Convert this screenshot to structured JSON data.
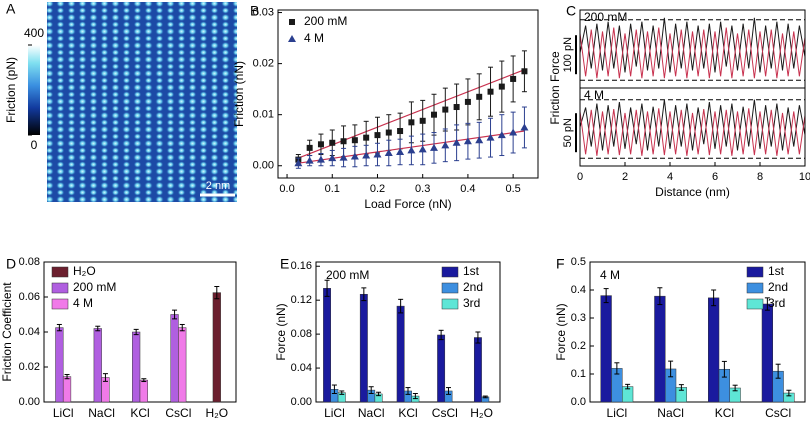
{
  "chart_data": [
    {
      "type": "image",
      "label": "A",
      "colorbar_label": "Friction (pN)",
      "clim": [
        0,
        400
      ],
      "cticks": [
        0,
        400
      ],
      "scale_bar": "2 nm"
    },
    {
      "type": "scatter",
      "label": "B",
      "xlabel": "Load Force (nN)",
      "ylabel": "Friction (nN)",
      "xlim": [
        -0.02,
        0.555
      ],
      "ylim": [
        -0.0024,
        0.0305
      ],
      "xticks": [
        {
          "value": 0,
          "label": "0.0"
        },
        {
          "value": 0.1,
          "label": "0.1"
        },
        {
          "value": 0.2,
          "label": "0.2"
        },
        {
          "value": 0.3,
          "label": "0.3"
        },
        {
          "value": 0.4,
          "label": "0.4"
        },
        {
          "value": 0.5,
          "label": "0.5"
        }
      ],
      "yticks": [
        {
          "value": 0,
          "label": "0.00"
        },
        {
          "value": 0.01,
          "label": "0.01"
        },
        {
          "value": 0.02,
          "label": "0.02"
        },
        {
          "value": 0.03,
          "label": "0.03"
        }
      ],
      "legend": "upper left",
      "x": [
        0.025,
        0.05,
        0.075,
        0.1,
        0.125,
        0.15,
        0.175,
        0.2,
        0.225,
        0.25,
        0.275,
        0.3,
        0.325,
        0.35,
        0.375,
        0.4,
        0.425,
        0.45,
        0.475,
        0.5,
        0.525
      ],
      "series": [
        {
          "name": "200 mM",
          "color": "#1a1a1a",
          "marker": "square",
          "fit_color": "#c8324f",
          "values": [
            0.0012,
            0.0035,
            0.0042,
            0.0045,
            0.0048,
            0.005,
            0.0055,
            0.006,
            0.0065,
            0.0068,
            0.0085,
            0.0088,
            0.01,
            0.011,
            0.0115,
            0.0125,
            0.0135,
            0.0145,
            0.0155,
            0.017,
            0.0185
          ],
          "errors": [
            0.001,
            0.0015,
            0.002,
            0.0025,
            0.003,
            0.003,
            0.0032,
            0.0035,
            0.0035,
            0.0035,
            0.004,
            0.004,
            0.004,
            0.0042,
            0.0045,
            0.0045,
            0.0045,
            0.0048,
            0.005,
            0.0045,
            0.004
          ],
          "fit": [
            0.0015,
            0.0188
          ]
        },
        {
          "name": "4 M",
          "color": "#2b3f8f",
          "marker": "triangle",
          "fit_color": "#c8324f",
          "values": [
            0.0005,
            0.001,
            0.0012,
            0.0015,
            0.0016,
            0.0018,
            0.002,
            0.0022,
            0.0025,
            0.0027,
            0.003,
            0.0032,
            0.0035,
            0.004,
            0.0045,
            0.0048,
            0.005,
            0.0055,
            0.006,
            0.0065,
            0.0075
          ],
          "errors": [
            0.001,
            0.001,
            0.0012,
            0.0015,
            0.0018,
            0.002,
            0.002,
            0.0022,
            0.0025,
            0.0025,
            0.0028,
            0.003,
            0.003,
            0.0032,
            0.0035,
            0.0035,
            0.0035,
            0.0038,
            0.004,
            0.004,
            0.004
          ],
          "fit": [
            0.0005,
            0.0068
          ]
        }
      ]
    },
    {
      "type": "line",
      "label": "C",
      "xlabel": "Distance (nm)",
      "ylabel": "Friction Force",
      "xlim": [
        0,
        10
      ],
      "xticks": [
        0,
        2,
        4,
        6,
        8,
        10
      ],
      "x": [
        0,
        0.25,
        0.5,
        0.75,
        1,
        1.25,
        1.5,
        1.75,
        2,
        2.25,
        2.5,
        2.75,
        3,
        3.25,
        3.5,
        3.75,
        4,
        4.25,
        4.5,
        4.75,
        5,
        5.25,
        5.5,
        5.75,
        6,
        6.25,
        6.5,
        6.75,
        7,
        7.25,
        7.5,
        7.75,
        8,
        8.25,
        8.5,
        8.75,
        9,
        9.25,
        9.5,
        9.75,
        10
      ],
      "panels": [
        {
          "annotation": "200 mM",
          "scale_bar": {
            "value": 100,
            "label": "100 pN"
          },
          "ylim": [
            -20,
            180
          ],
          "dashed": [
            0,
            155
          ],
          "series": [
            {
              "color": "#1a1a1a",
              "values": [
                70,
                140,
                30,
                145,
                25,
                150,
                30,
                140,
                20,
                145,
                35,
                150,
                25,
                140,
                30,
                160,
                20,
                145,
                30,
                150,
                25,
                140,
                30,
                145,
                20,
                150,
                35,
                140,
                25,
                145,
                30,
                160,
                20,
                140,
                30,
                150,
                25,
                145,
                30,
                140,
                60
              ]
            },
            {
              "color": "#c8324f",
              "values": [
                120,
                10,
                130,
                5,
                125,
                10,
                135,
                5,
                120,
                10,
                130,
                5,
                125,
                10,
                135,
                5,
                120,
                10,
                130,
                5,
                125,
                10,
                130,
                5,
                125,
                10,
                135,
                5,
                120,
                10,
                130,
                5,
                125,
                10,
                130,
                5,
                120,
                10,
                125,
                10,
                110
              ]
            }
          ]
        },
        {
          "annotation": "4 M",
          "scale_bar": {
            "value": 50,
            "label": "50 pN"
          },
          "ylim": [
            -10,
            90
          ],
          "dashed": [
            0,
            75
          ],
          "series": [
            {
              "color": "#1a1a1a",
              "values": [
                40,
                65,
                15,
                70,
                10,
                68,
                15,
                72,
                12,
                65,
                18,
                70,
                10,
                66,
                15,
                75,
                12,
                68,
                15,
                70,
                10,
                65,
                18,
                72,
                12,
                68,
                15,
                70,
                10,
                66,
                15,
                75,
                12,
                68,
                15,
                70,
                10,
                65,
                15,
                68,
                30
              ]
            },
            {
              "color": "#c8324f",
              "values": [
                60,
                5,
                62,
                3,
                60,
                5,
                63,
                4,
                58,
                5,
                62,
                3,
                60,
                5,
                64,
                4,
                60,
                5,
                62,
                3,
                58,
                5,
                63,
                4,
                60,
                5,
                62,
                3,
                60,
                5,
                64,
                4,
                60,
                5,
                62,
                3,
                58,
                5,
                60,
                5,
                55
              ]
            }
          ]
        }
      ]
    },
    {
      "type": "bar",
      "label": "D",
      "ylabel": "Friction Coefficient",
      "ylim": [
        0,
        0.08
      ],
      "yticks": [
        {
          "value": 0,
          "label": "0.00"
        },
        {
          "value": 0.02,
          "label": "0.02"
        },
        {
          "value": 0.04,
          "label": "0.04"
        },
        {
          "value": 0.06,
          "label": "0.06"
        },
        {
          "value": 0.08,
          "label": "0.08"
        }
      ],
      "legend": "upper left",
      "categories": [
        "LiCl",
        "NaCl",
        "KCl",
        "CsCl",
        "H₂O"
      ],
      "series": [
        {
          "name": "H₂O",
          "color": "#6b1f2e",
          "values": [
            null,
            null,
            null,
            null,
            0.0625
          ],
          "errors": [
            null,
            null,
            null,
            null,
            0.0035
          ]
        },
        {
          "name": "200 mM",
          "color": "#b05fe0",
          "values": [
            0.0425,
            0.042,
            0.04,
            0.05,
            null
          ],
          "errors": [
            0.0018,
            0.0013,
            0.0015,
            0.0025,
            null
          ]
        },
        {
          "name": "4 M",
          "color": "#f07ae8",
          "values": [
            0.0145,
            0.014,
            0.0125,
            0.0425,
            null
          ],
          "errors": [
            0.0012,
            0.0022,
            0.0008,
            0.0018,
            null
          ]
        }
      ]
    },
    {
      "type": "bar",
      "label": "E",
      "ylabel": "Force (nN)",
      "annotation": "200 mM",
      "ylim": [
        0,
        0.165
      ],
      "yticks": [
        {
          "value": 0,
          "label": "0.00"
        },
        {
          "value": 0.04,
          "label": "0.04"
        },
        {
          "value": 0.08,
          "label": "0.08"
        },
        {
          "value": 0.12,
          "label": "0.12"
        },
        {
          "value": 0.16,
          "label": "0.16"
        }
      ],
      "legend": "upper right",
      "categories": [
        "LiCl",
        "NaCl",
        "KCl",
        "CsCl",
        "H₂O"
      ],
      "series": [
        {
          "name": "1st",
          "color": "#1a1a9e",
          "values": [
            0.134,
            0.127,
            0.113,
            0.079,
            0.076
          ],
          "errors": [
            0.0095,
            0.0075,
            0.008,
            0.0055,
            0.0065
          ]
        },
        {
          "name": "2nd",
          "color": "#3d8fe0",
          "values": [
            0.015,
            0.014,
            0.013,
            0.013,
            0.006
          ],
          "errors": [
            0.005,
            0.004,
            0.004,
            0.004,
            0.001
          ]
        },
        {
          "name": "3rd",
          "color": "#5ee6d6",
          "values": [
            0.011,
            0.0095,
            0.007,
            null,
            null
          ],
          "errors": [
            0.002,
            0.002,
            0.003,
            null,
            null
          ]
        }
      ]
    },
    {
      "type": "bar",
      "label": "F",
      "ylabel": "Force (nN)",
      "annotation": "4 M",
      "ylim": [
        0,
        0.5
      ],
      "yticks": [
        {
          "value": 0,
          "label": "0.0"
        },
        0.1,
        0.2,
        0.3,
        0.4,
        0.5
      ],
      "legend": "upper right",
      "categories": [
        "LiCl",
        "NaCl",
        "KCl",
        "CsCl"
      ],
      "series": [
        {
          "name": "1st",
          "color": "#1a1a9e",
          "values": [
            0.38,
            0.378,
            0.372,
            0.35
          ],
          "errors": [
            0.025,
            0.03,
            0.028,
            0.022
          ]
        },
        {
          "name": "2nd",
          "color": "#3d8fe0",
          "values": [
            0.12,
            0.118,
            0.117,
            0.11
          ],
          "errors": [
            0.02,
            0.028,
            0.028,
            0.025
          ]
        },
        {
          "name": "3rd",
          "color": "#5ee6d6",
          "values": [
            0.055,
            0.052,
            0.05,
            0.032
          ],
          "errors": [
            0.008,
            0.01,
            0.01,
            0.01
          ]
        }
      ]
    }
  ]
}
